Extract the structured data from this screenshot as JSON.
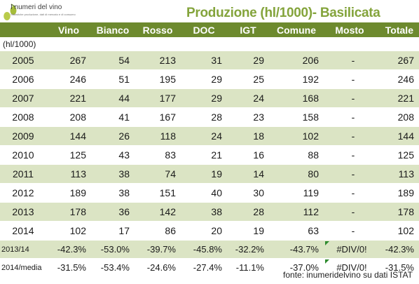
{
  "logo": {
    "title": "I numeri del vino",
    "subtitle": "Statistiche produzione, dati di mercato e di consumo"
  },
  "title": "Produzione (hl/1000)- Basilicata",
  "unit_label": "(hl/1000)",
  "columns": [
    "",
    "Vino",
    "Bianco",
    "Rosso",
    "DOC",
    "IGT",
    "Comune",
    "Mosto",
    "Totale"
  ],
  "rows": [
    [
      "2005",
      "267",
      "54",
      "213",
      "31",
      "29",
      "206",
      "-",
      "267"
    ],
    [
      "2006",
      "246",
      "51",
      "195",
      "29",
      "25",
      "192",
      "-",
      "246"
    ],
    [
      "2007",
      "221",
      "44",
      "177",
      "29",
      "24",
      "168",
      "-",
      "221"
    ],
    [
      "2008",
      "208",
      "41",
      "167",
      "28",
      "23",
      "158",
      "-",
      "208"
    ],
    [
      "2009",
      "144",
      "26",
      "118",
      "24",
      "18",
      "102",
      "-",
      "144"
    ],
    [
      "2010",
      "125",
      "43",
      "83",
      "21",
      "16",
      "88",
      "-",
      "125"
    ],
    [
      "2011",
      "113",
      "38",
      "74",
      "19",
      "14",
      "80",
      "-",
      "113"
    ],
    [
      "2012",
      "189",
      "38",
      "151",
      "40",
      "30",
      "119",
      "-",
      "189"
    ],
    [
      "2013",
      "178",
      "36",
      "142",
      "38",
      "28",
      "112",
      "-",
      "178"
    ],
    [
      "2014",
      "102",
      "17",
      "86",
      "20",
      "19",
      "63",
      "-",
      "102"
    ]
  ],
  "change_rows": [
    [
      "2013/14",
      "-42.3%",
      "-53.0%",
      "-39.7%",
      "-45.8%",
      "-32.2%",
      "-43.7%",
      "#DIV/0!",
      "-42.3%"
    ],
    [
      "2014/media",
      "-31.5%",
      "-53.4%",
      "-24.6%",
      "-27.4%",
      "-11.1%",
      "-37.0%",
      "#DIV/0!",
      "-31.5%"
    ]
  ],
  "footer": "fonte: inumeridelvino su dati ISTAT",
  "colors": {
    "header_bg": "#6d8a2e",
    "stripe": "#dbe4c4",
    "title": "#84a43c"
  }
}
